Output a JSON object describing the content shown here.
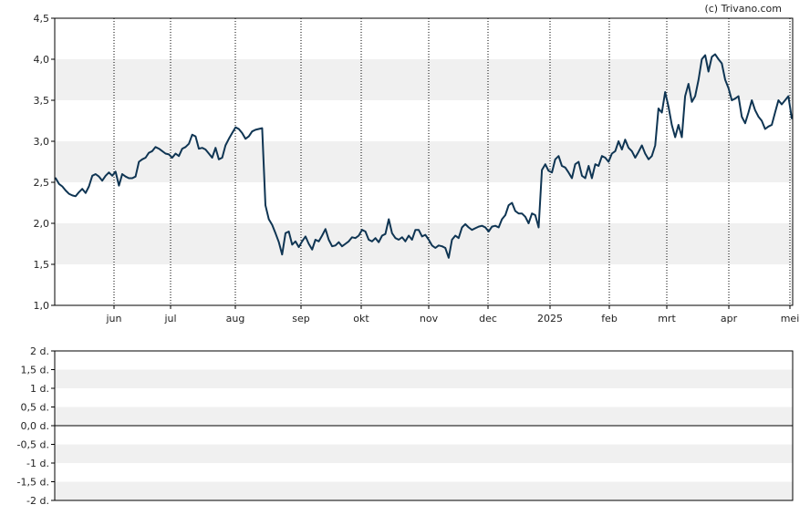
{
  "copyright": "(c) Trivano.com",
  "colors": {
    "line": "#0f3553",
    "band": "#f0f0f0",
    "frame": "#000000",
    "grid": "#000000"
  },
  "chart_data": [
    {
      "type": "line",
      "title": "",
      "xlabel": "",
      "ylabel": "",
      "ylim": [
        1.0,
        4.5
      ],
      "y_ticks": [
        1.0,
        1.5,
        2.0,
        2.5,
        3.0,
        3.5,
        4.0,
        4.5
      ],
      "y_tick_labels": [
        "1,0",
        "1,5",
        "2,0",
        "2,5",
        "3,0",
        "3,5",
        "4,0",
        "4,5"
      ],
      "grid": "vertical dotted at month starts",
      "x_ticks": [
        "jun",
        "jul",
        "aug",
        "sep",
        "okt",
        "nov",
        "dec",
        "2025",
        "feb",
        "mrt",
        "apr",
        "mei"
      ],
      "series": [
        {
          "values": [
            2.55,
            2.48,
            2.45,
            2.4,
            2.36,
            2.34,
            2.33,
            2.38,
            2.42,
            2.37,
            2.45,
            2.58,
            2.6,
            2.57,
            2.52,
            2.58,
            2.62,
            2.58,
            2.63,
            2.46,
            2.6,
            2.57,
            2.55,
            2.55,
            2.57,
            2.75,
            2.78,
            2.8,
            2.86,
            2.88,
            2.93,
            2.91,
            2.88,
            2.85,
            2.84,
            2.8,
            2.85,
            2.82,
            2.91,
            2.93,
            2.97,
            3.08,
            3.06,
            2.91,
            2.92,
            2.9,
            2.85,
            2.8,
            2.92,
            2.78,
            2.8,
            2.95,
            3.03,
            3.1,
            3.17,
            3.15,
            3.1,
            3.03,
            3.06,
            3.12,
            3.14,
            3.15,
            3.16,
            2.22,
            2.05,
            1.98,
            1.88,
            1.77,
            1.62,
            1.88,
            1.9,
            1.74,
            1.78,
            1.71,
            1.78,
            1.84,
            1.75,
            1.68,
            1.8,
            1.78,
            1.85,
            1.93,
            1.8,
            1.72,
            1.73,
            1.77,
            1.72,
            1.75,
            1.78,
            1.83,
            1.82,
            1.85,
            1.92,
            1.9,
            1.8,
            1.78,
            1.82,
            1.77,
            1.85,
            1.87,
            2.05,
            1.88,
            1.82,
            1.8,
            1.83,
            1.78,
            1.85,
            1.8,
            1.92,
            1.92,
            1.84,
            1.86,
            1.8,
            1.73,
            1.7,
            1.73,
            1.72,
            1.7,
            1.58,
            1.8,
            1.85,
            1.82,
            1.95,
            1.99,
            1.95,
            1.92,
            1.94,
            1.96,
            1.97,
            1.95,
            1.9,
            1.96,
            1.97,
            1.95,
            2.05,
            2.1,
            2.22,
            2.25,
            2.15,
            2.12,
            2.12,
            2.08,
            2.0,
            2.12,
            2.1,
            1.95,
            2.65,
            2.72,
            2.64,
            2.62,
            2.78,
            2.82,
            2.7,
            2.68,
            2.62,
            2.55,
            2.72,
            2.75,
            2.58,
            2.55,
            2.7,
            2.55,
            2.72,
            2.7,
            2.82,
            2.8,
            2.75,
            2.85,
            2.88,
            3.0,
            2.9,
            3.02,
            2.92,
            2.88,
            2.8,
            2.87,
            2.95,
            2.85,
            2.78,
            2.82,
            2.95,
            3.4,
            3.35,
            3.6,
            3.42,
            3.2,
            3.05,
            3.2,
            3.05,
            3.55,
            3.7,
            3.48,
            3.55,
            3.75,
            4.0,
            4.05,
            3.85,
            4.03,
            4.06,
            4.0,
            3.95,
            3.75,
            3.65,
            3.5,
            3.52,
            3.55,
            3.3,
            3.22,
            3.35,
            3.5,
            3.38,
            3.3,
            3.25,
            3.15,
            3.18,
            3.2,
            3.35,
            3.5,
            3.45,
            3.5,
            3.55,
            3.28
          ]
        }
      ]
    },
    {
      "type": "line",
      "title": "",
      "ylim": [
        -2,
        2
      ],
      "y_ticks": [
        -2,
        -1.5,
        -1,
        -0.5,
        0,
        0.5,
        1,
        1.5,
        2
      ],
      "y_tick_labels": [
        "-2 d.",
        "-1,5 d.",
        "-1 d.",
        "-0,5 d.",
        "0,0 d.",
        "0,5 d.",
        "1 d.",
        "1,5 d.",
        "2 d."
      ],
      "series": []
    }
  ]
}
